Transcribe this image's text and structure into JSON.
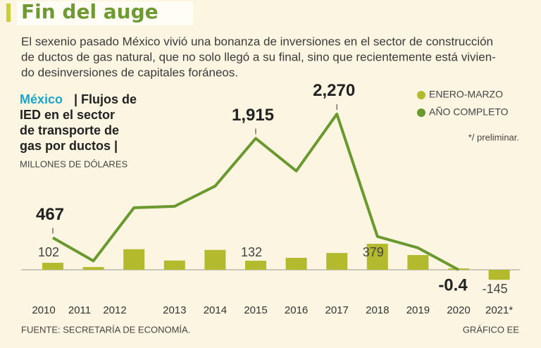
{
  "chart_data": {
    "type": "bar_line",
    "title": "Fin del auge",
    "description": [
      "El sexenio pasado México vivió una bonanza de inversiones en el sector de construcción",
      "de ductos de gas natural, que no solo llegó a su final, sino que recientemente está vivien-",
      "do desinversiones de capitales foráneos."
    ],
    "heading_highlight": "México",
    "heading": [
      "| Flujos de",
      "IED en el sector",
      "de transporte de",
      "gas por ductos |"
    ],
    "units": "MILLONES DE DÓLARES",
    "note": "*/ preliminar.",
    "source": "FUENTE: SECRETARÍA DE ECONOMÍA.",
    "credit": "GRÁFICO EE",
    "categories": [
      "2010",
      "2011",
      "2012",
      "2013",
      "2014",
      "2015",
      "2016",
      "2017",
      "2018",
      "2019",
      "2020",
      "2021*"
    ],
    "series": [
      {
        "name": "ENERO-MARZO",
        "color": "#b3ba2e",
        "kind": "bar",
        "values": [
          102,
          40,
          300,
          135,
          290,
          132,
          175,
          245,
          379,
          215,
          20,
          -145
        ],
        "value_labels": [
          "102",
          null,
          null,
          null,
          null,
          "132",
          null,
          null,
          "379",
          null,
          null,
          "-145"
        ]
      },
      {
        "name": "AÑO COMPLETO",
        "color": "#6a992f",
        "kind": "line",
        "values": [
          467,
          130,
          905,
          925,
          1220,
          1915,
          1440,
          2270,
          485,
          320,
          -0.4,
          null
        ],
        "value_labels": [
          "467",
          null,
          null,
          null,
          null,
          "1,915",
          null,
          "2,270",
          null,
          null,
          "-0.4",
          null
        ]
      }
    ]
  }
}
